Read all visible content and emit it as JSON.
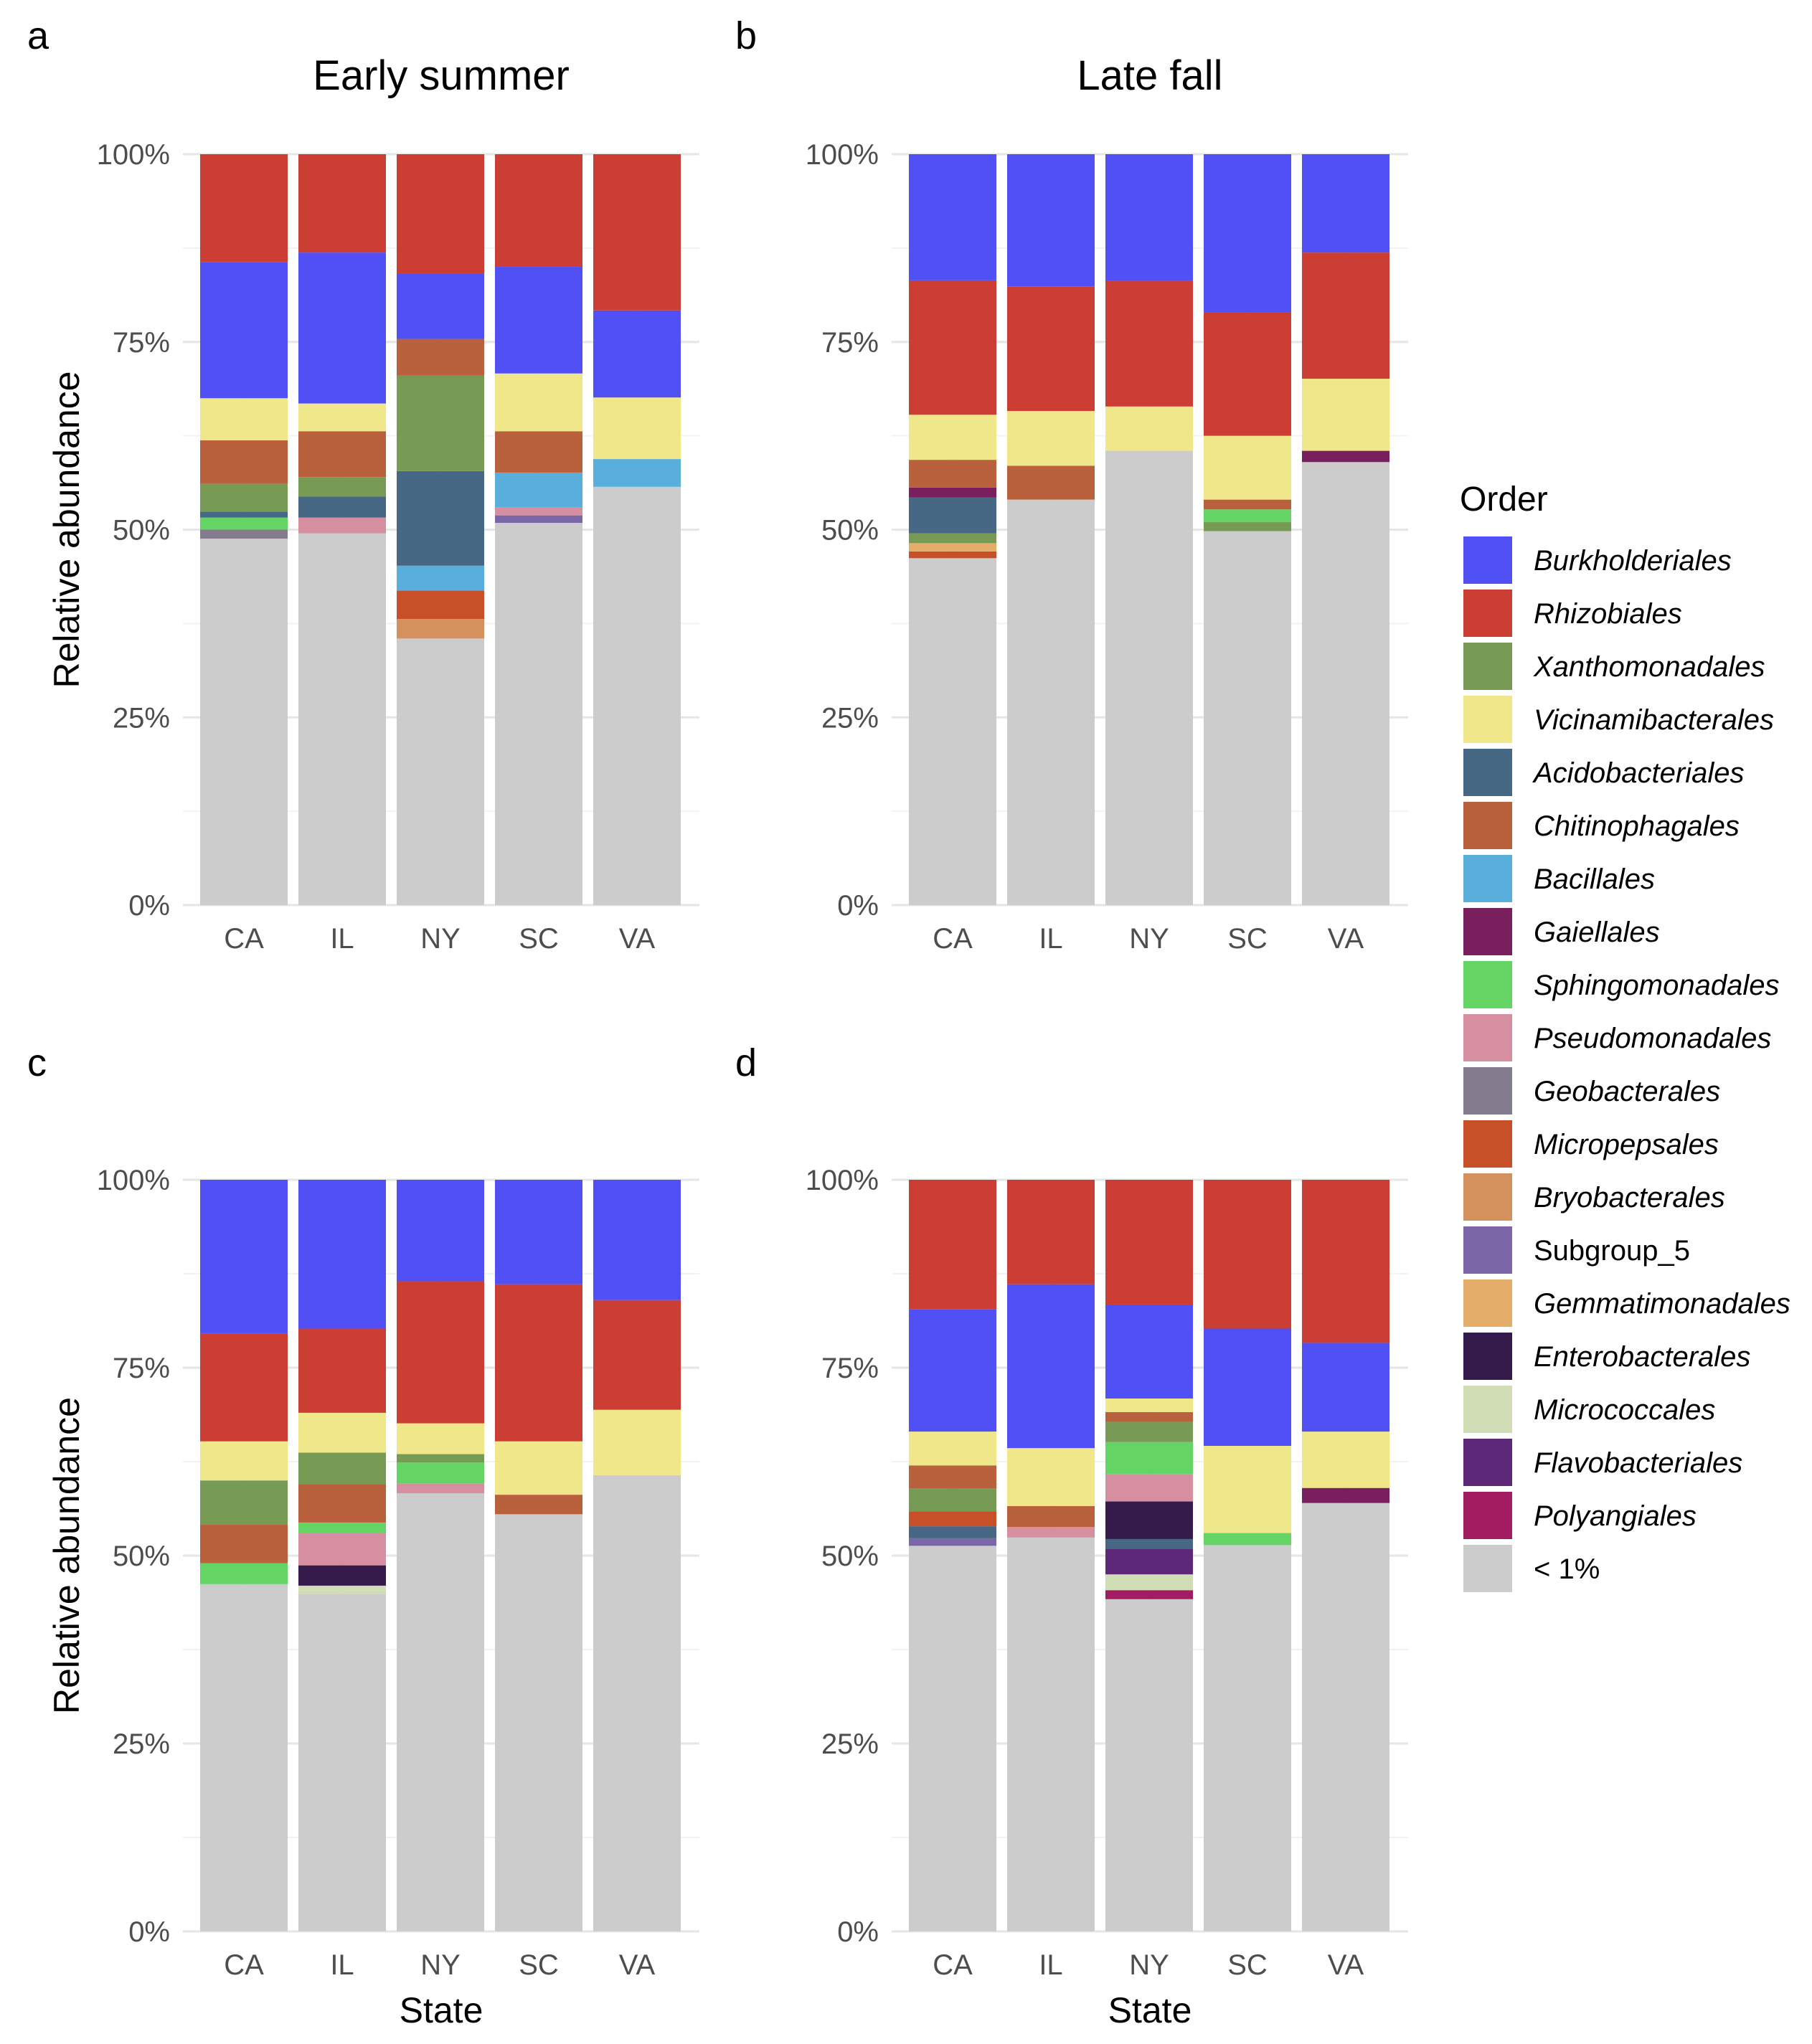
{
  "chart_data": {
    "type": "bar",
    "stacked": true,
    "column_titles": [
      "Early summer",
      "Late fall"
    ],
    "x_label": "State",
    "y_label": "Relative abundance",
    "y_range": [
      0,
      100
    ],
    "y_ticks": [
      "0%",
      "25%",
      "50%",
      "75%",
      "100%"
    ],
    "categories": [
      "CA",
      "IL",
      "NY",
      "SC",
      "VA"
    ],
    "legend": {
      "title": "Order",
      "entries": [
        {
          "name": "Burkholderiales",
          "color": "#5050F5",
          "italic": true
        },
        {
          "name": "Rhizobiales",
          "color": "#CC3D33",
          "italic": true
        },
        {
          "name": "Xanthomonadales",
          "color": "#779B55",
          "italic": true
        },
        {
          "name": "Vicinamibacterales",
          "color": "#F0E68A",
          "italic": true
        },
        {
          "name": "Acidobacteriales",
          "color": "#466885",
          "italic": true
        },
        {
          "name": "Chitinophagales",
          "color": "#B9613C",
          "italic": true
        },
        {
          "name": "Bacillales",
          "color": "#5AAEDC",
          "italic": true
        },
        {
          "name": "Gaiellales",
          "color": "#7A1F5E",
          "italic": true
        },
        {
          "name": "Sphingomonadales",
          "color": "#64D464",
          "italic": true
        },
        {
          "name": "Pseudomonadales",
          "color": "#D68FA0",
          "italic": true
        },
        {
          "name": "Geobacterales",
          "color": "#857B8E",
          "italic": true
        },
        {
          "name": "Micropepsales",
          "color": "#C85028",
          "italic": true
        },
        {
          "name": "Bryobacterales",
          "color": "#D4915E",
          "italic": true
        },
        {
          "name": "Subgroup_5",
          "color": "#7B66A8",
          "italic": false
        },
        {
          "name": "Gemmatimonadales",
          "color": "#E4AD6A",
          "italic": true
        },
        {
          "name": "Enterobacterales",
          "color": "#351A4C",
          "italic": true
        },
        {
          "name": "Micrococcales",
          "color": "#D0DDB5",
          "italic": true
        },
        {
          "name": "Flavobacteriales",
          "color": "#5E2878",
          "italic": true
        },
        {
          "name": "Polyangiales",
          "color": "#A21C61",
          "italic": true
        },
        {
          "name": "< 1%",
          "color": "#CCCCCC",
          "italic": false
        }
      ]
    },
    "panels": [
      {
        "label": "a",
        "season": "Early summer",
        "bars": {
          "CA": [
            [
              "< 1%",
              48.8
            ],
            [
              "Geobacterales",
              1.2
            ],
            [
              "Sphingomonadales",
              1.6
            ],
            [
              "Acidobacteriales",
              0.8
            ],
            [
              "Xanthomonadales",
              3.7
            ],
            [
              "Chitinophagales",
              5.8
            ],
            [
              "Vicinamibacterales",
              5.6
            ],
            [
              "Burkholderiales",
              18.1
            ],
            [
              "Rhizobiales",
              14.4
            ]
          ],
          "IL": [
            [
              "< 1%",
              49.5
            ],
            [
              "Pseudomonadales",
              2.1
            ],
            [
              "Xanthomonadales",
              0
            ],
            [
              "Acidobacteriales",
              2.8
            ],
            [
              "Xanthomonadales",
              2.6
            ],
            [
              "Chitinophagales",
              6.1
            ],
            [
              "Vicinamibacterales",
              3.7
            ],
            [
              "Burkholderiales",
              20.1
            ],
            [
              "Rhizobiales",
              13.1
            ]
          ],
          "NY": [
            [
              "< 1%",
              35.5
            ],
            [
              "Bryobacterales",
              2.6
            ],
            [
              "Micropepsales",
              3.8
            ],
            [
              "Bacillales",
              3.3
            ],
            [
              "Acidobacteriales",
              12.6
            ],
            [
              "Xanthomonadales",
              12.7
            ],
            [
              "Chitinophagales",
              4.9
            ],
            [
              "Burkholderiales",
              8.7
            ],
            [
              "Rhizobiales",
              15.6
            ]
          ],
          "SC": [
            [
              "< 1%",
              50.9
            ],
            [
              "Subgroup_5",
              1.0
            ],
            [
              "Pseudomonadales",
              1.1
            ],
            [
              "Bacillales",
              4.6
            ],
            [
              "Chitinophagales",
              5.5
            ],
            [
              "Vicinamibacterales",
              7.7
            ],
            [
              "Burkholderiales",
              14.2
            ],
            [
              "Rhizobiales",
              15.0
            ]
          ],
          "VA": [
            [
              "< 1%",
              55.7
            ],
            [
              "Bacillales",
              3.7
            ],
            [
              "Vicinamibacterales",
              8.2
            ],
            [
              "Burkholderiales",
              11.6
            ],
            [
              "Rhizobiales",
              20.8
            ]
          ]
        }
      },
      {
        "label": "b",
        "season": "Late fall",
        "bars": {
          "CA": [
            [
              "< 1%",
              46.2
            ],
            [
              "Micropepsales",
              0.9
            ],
            [
              "Gemmatimonadales",
              1.1
            ],
            [
              "Xanthomonadales",
              1.3
            ],
            [
              "Acidobacteriales",
              4.8
            ],
            [
              "Gaiellales",
              1.3
            ],
            [
              "Chitinophagales",
              3.7
            ],
            [
              "Vicinamibacterales",
              6.0
            ],
            [
              "Rhizobiales",
              17.9
            ],
            [
              "Burkholderiales",
              16.8
            ]
          ],
          "IL": [
            [
              "< 1%",
              54.0
            ],
            [
              "Chitinophagales",
              4.5
            ],
            [
              "Vicinamibacterales",
              7.3
            ],
            [
              "Rhizobiales",
              16.6
            ],
            [
              "Burkholderiales",
              17.6
            ]
          ],
          "NY": [
            [
              "< 1%",
              60.5
            ],
            [
              "Vicinamibacterales",
              5.9
            ],
            [
              "Rhizobiales",
              16.7
            ],
            [
              "Burkholderiales",
              16.9
            ]
          ],
          "SC": [
            [
              "< 1%",
              49.8
            ],
            [
              "Xanthomonadales",
              1.2
            ],
            [
              "Sphingomonadales",
              1.7
            ],
            [
              "Chitinophagales",
              1.3
            ],
            [
              "Vicinamibacterales",
              8.5
            ],
            [
              "Rhizobiales",
              16.4
            ],
            [
              "Burkholderiales",
              21.1
            ]
          ],
          "VA": [
            [
              "< 1%",
              59.0
            ],
            [
              "Gaiellales",
              1.5
            ],
            [
              "Vicinamibacterales",
              9.6
            ],
            [
              "Rhizobiales",
              16.8
            ],
            [
              "Burkholderiales",
              13.1
            ]
          ]
        }
      },
      {
        "label": "c",
        "season": "Early summer",
        "bars": {
          "CA": [
            [
              "< 1%",
              46.2
            ],
            [
              "Sphingomonadales",
              2.8
            ],
            [
              "Chitinophagales",
              5.1
            ],
            [
              "Xanthomonadales",
              5.9
            ],
            [
              "Vicinamibacterales",
              5.2
            ],
            [
              "Rhizobiales",
              14.3
            ],
            [
              "Burkholderiales",
              20.5
            ]
          ],
          "IL": [
            [
              "< 1%",
              44.9
            ],
            [
              "Micrococcales",
              1.1
            ],
            [
              "Enterobacterales",
              2.7
            ],
            [
              "Pseudomonadales",
              4.3
            ],
            [
              "Sphingomonadales",
              1.4
            ],
            [
              "Chitinophagales",
              5.1
            ],
            [
              "Xanthomonadales",
              4.2
            ],
            [
              "Vicinamibacterales",
              5.3
            ],
            [
              "Rhizobiales",
              11.2
            ],
            [
              "Burkholderiales",
              19.8
            ]
          ],
          "NY": [
            [
              "< 1%",
              58.3
            ],
            [
              "Pseudomonadales",
              1.3
            ],
            [
              "Sphingomonadales",
              2.8
            ],
            [
              "Xanthomonadales",
              1.1
            ],
            [
              "Vicinamibacterales",
              4.1
            ],
            [
              "Rhizobiales",
              18.9
            ],
            [
              "Burkholderiales",
              13.5
            ]
          ],
          "SC": [
            [
              "< 1%",
              55.5
            ],
            [
              "Chitinophagales",
              2.6
            ],
            [
              "Vicinamibacterales",
              7.1
            ],
            [
              "Rhizobiales",
              20.9
            ],
            [
              "Burkholderiales",
              13.9
            ]
          ],
          "VA": [
            [
              "< 1%",
              60.7
            ],
            [
              "Vicinamibacterales",
              8.7
            ],
            [
              "Rhizobiales",
              14.6
            ],
            [
              "Burkholderiales",
              16.0
            ]
          ]
        }
      },
      {
        "label": "d",
        "season": "Late fall",
        "bars": {
          "CA": [
            [
              "< 1%",
              51.3
            ],
            [
              "Subgroup_5",
              1.0
            ],
            [
              "Acidobacteriales",
              1.6
            ],
            [
              "Micropepsales",
              2.0
            ],
            [
              "Xanthomonadales",
              3.0
            ],
            [
              "Chitinophagales",
              3.1
            ],
            [
              "Vicinamibacterales",
              4.5
            ],
            [
              "Burkholderiales",
              16.3
            ],
            [
              "Rhizobiales",
              17.2
            ]
          ],
          "IL": [
            [
              "< 1%",
              52.4
            ],
            [
              "Pseudomonadales",
              1.4
            ],
            [
              "Chitinophagales",
              2.8
            ],
            [
              "Vicinamibacterales",
              7.7
            ],
            [
              "Burkholderiales",
              21.8
            ],
            [
              "Rhizobiales",
              13.9
            ]
          ],
          "NY": [
            [
              "< 1%",
              44.2
            ],
            [
              "Polyangiales",
              1.2
            ],
            [
              "Micrococcales",
              2.1
            ],
            [
              "Flavobacteriales",
              3.4
            ],
            [
              "Acidobacteriales",
              1.3
            ],
            [
              "Enterobacterales",
              5.0
            ],
            [
              "Pseudomonadales",
              3.6
            ],
            [
              "Sphingomonadales",
              4.3
            ],
            [
              "Xanthomonadales",
              2.7
            ],
            [
              "Chitinophagales",
              1.3
            ],
            [
              "Vicinamibacterales",
              1.8
            ],
            [
              "Burkholderiales",
              12.5
            ],
            [
              "Rhizobiales",
              16.6
            ]
          ],
          "SC": [
            [
              "< 1%",
              51.4
            ],
            [
              "Sphingomonadales",
              1.6
            ],
            [
              "Vicinamibacterales",
              11.6
            ],
            [
              "Burkholderiales",
              15.6
            ],
            [
              "Rhizobiales",
              19.8
            ]
          ],
          "VA": [
            [
              "< 1%",
              57.0
            ],
            [
              "Gaiellales",
              2.0
            ],
            [
              "Vicinamibacterales",
              7.5
            ],
            [
              "Burkholderiales",
              11.8
            ],
            [
              "Rhizobiales",
              21.7
            ]
          ]
        }
      }
    ]
  }
}
